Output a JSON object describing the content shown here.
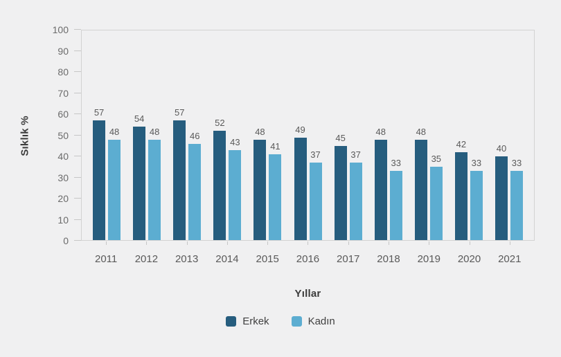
{
  "chart_data": {
    "type": "bar",
    "title": "",
    "categories": [
      "2011",
      "2012",
      "2013",
      "2014",
      "2015",
      "2016",
      "2017",
      "2018",
      "2019",
      "2020",
      "2021"
    ],
    "series": [
      {
        "name": "Erkek",
        "color": "#265d7e",
        "values": [
          57,
          54,
          57,
          52,
          48,
          49,
          45,
          48,
          48,
          42,
          40
        ]
      },
      {
        "name": "Kadın",
        "color": "#5cadd1",
        "values": [
          48,
          48,
          46,
          43,
          41,
          37,
          37,
          33,
          35,
          33,
          33
        ]
      }
    ],
    "xlabel": "Yıllar",
    "ylabel": "Sıklık %",
    "ylim": [
      0,
      100
    ],
    "ytick_step": 10,
    "yticks": [
      "0",
      "10",
      "20",
      "30",
      "40",
      "50",
      "60",
      "70",
      "80",
      "90",
      "100"
    ],
    "grid": false,
    "legend_position": "bottom",
    "value_labels_shown": true
  },
  "colors": {
    "background": "#f0f0f1",
    "plot_border": "#d2d2d2",
    "tick_mark": "#c6c6c6",
    "value_label": "#595959",
    "axis_label": "#595959",
    "axis_title": "#3b3b3b",
    "series_erkek": "#265d7e",
    "series_kadin": "#5cadd1"
  }
}
